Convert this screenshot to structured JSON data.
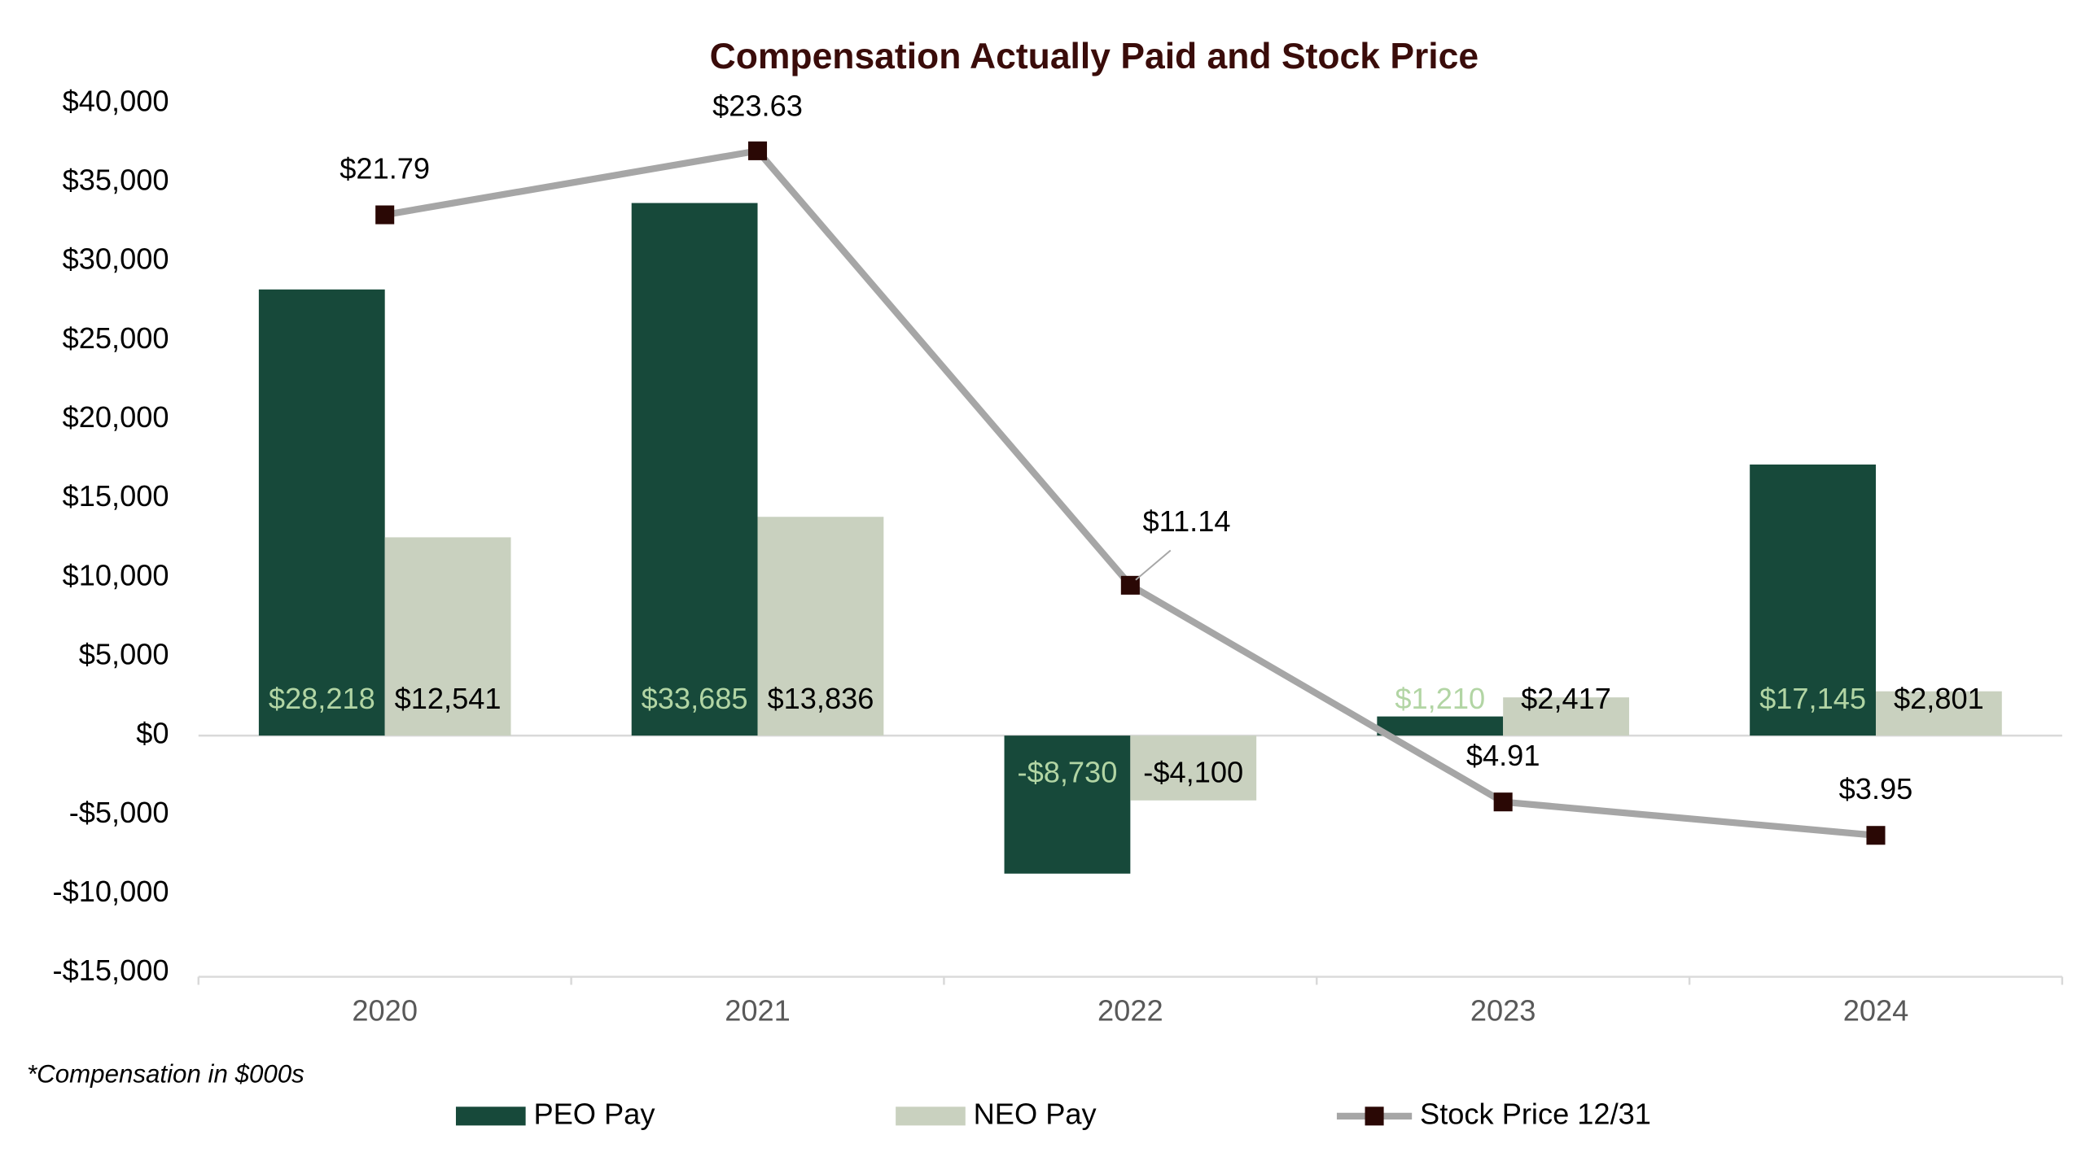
{
  "chart_data": {
    "type": "bar",
    "title": "Compensation Actually Paid and Stock Price",
    "footnote": "*Compensation in $000s",
    "categories": [
      "2020",
      "2021",
      "2022",
      "2023",
      "2024"
    ],
    "series": [
      {
        "name": "PEO Pay",
        "color": "#17493a",
        "label_color": "#b2d5a4",
        "values": [
          28218,
          33685,
          -8730,
          1210,
          17145
        ],
        "value_labels": [
          "$28,218",
          "$33,685",
          "-$8,730",
          "$1,210",
          "$17,145"
        ]
      },
      {
        "name": "NEO Pay",
        "color": "#c9d1bf",
        "label_color": "#000000",
        "values": [
          12541,
          13836,
          -4100,
          2417,
          2801
        ],
        "value_labels": [
          "$12,541",
          "$13,836",
          "-$4,100",
          "$2,417",
          "$2,801"
        ]
      },
      {
        "name": "Stock Price 12/31",
        "type": "line",
        "axis": "y2",
        "color": "#a6a6a6",
        "marker_color": "#2a0805",
        "label_color": "#000000",
        "values": [
          21.79,
          23.63,
          11.14,
          4.91,
          3.95
        ],
        "value_labels": [
          "$21.79",
          "$23.63",
          "$11.14",
          "$4.91",
          "$3.95"
        ]
      }
    ],
    "ylim": [
      -15000,
      40000
    ],
    "yticks": [
      {
        "value": -15000,
        "label": "-$15,000"
      },
      {
        "value": -10000,
        "label": "-$10,000"
      },
      {
        "value": -5000,
        "label": "-$5,000"
      },
      {
        "value": 0,
        "label": "$0"
      },
      {
        "value": 5000,
        "label": "$5,000"
      },
      {
        "value": 10000,
        "label": "$10,000"
      },
      {
        "value": 15000,
        "label": "$15,000"
      },
      {
        "value": 20000,
        "label": "$20,000"
      },
      {
        "value": 25000,
        "label": "$25,000"
      },
      {
        "value": 30000,
        "label": "$30,000"
      },
      {
        "value": 35000,
        "label": "$35,000"
      },
      {
        "value": 40000,
        "label": "$40,000"
      }
    ],
    "y2lim": [
      0,
      25
    ],
    "grid": false,
    "legend": "bottom"
  }
}
